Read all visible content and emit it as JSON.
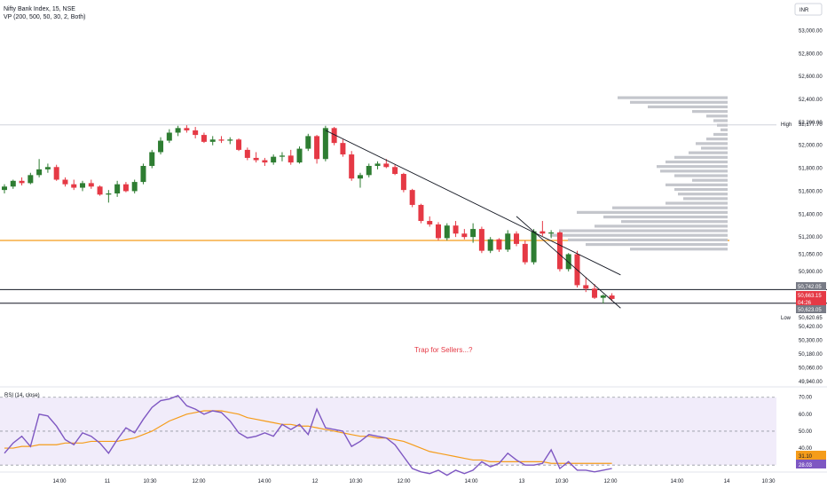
{
  "header": {
    "symbol_line": "Nifty Bank Index, 15, NSE",
    "indicator_line": "VP (200, 500, 50, 30, 2, Both)",
    "currency": "INR"
  },
  "price_axis": {
    "labels": [
      "53,000.00",
      "52,800.00",
      "52,600.00",
      "52,400.00",
      "52,200.00",
      "52,000.00",
      "51,800.00",
      "51,600.00",
      "51,400.00",
      "51,200.00",
      "51,050.00",
      "50,900.00",
      "50,420.00",
      "50,300.00",
      "50,180.00",
      "50,060.00",
      "49,940.00"
    ],
    "high_label": "High",
    "high_value": "52,177.70",
    "low_label": "Low",
    "low_value": "50,620.65",
    "level_top": "50,742.05",
    "last_price": "50,663.15",
    "countdown": "04:26",
    "level_bottom": "50,623.05"
  },
  "rsi": {
    "title": "RSI (14, close)",
    "axis_labels": [
      "70.00",
      "60.00",
      "50.00",
      "40.00",
      "30.00"
    ],
    "ma_value": "31.10",
    "rsi_value": "28.03"
  },
  "time_axis": [
    "14:00",
    "11",
    "10:30",
    "12:00",
    "14:00",
    "12",
    "10:30",
    "12:00",
    "14:00",
    "13",
    "10:30",
    "12:00",
    "14:00",
    "14",
    "10:30"
  ],
  "annotation": "Trap for Sellers...?",
  "colors": {
    "up": "#2e7d32",
    "down": "#e53945",
    "orange": "#f59c1a",
    "rsi_line": "#7e57c2",
    "rsi_bg": "#f1ecfa",
    "vp": "#c4c6cc"
  },
  "chart_data": {
    "type": "candlestick",
    "candles": [
      [
        51610,
        51660,
        51580,
        51640
      ],
      [
        51640,
        51700,
        51620,
        51690
      ],
      [
        51690,
        51720,
        51650,
        51670
      ],
      [
        51670,
        51760,
        51660,
        51740
      ],
      [
        51740,
        51880,
        51720,
        51790
      ],
      [
        51790,
        51840,
        51760,
        51810
      ],
      [
        51810,
        51830,
        51690,
        51700
      ],
      [
        51700,
        51720,
        51640,
        51660
      ],
      [
        51660,
        51700,
        51610,
        51630
      ],
      [
        51630,
        51690,
        51600,
        51670
      ],
      [
        51670,
        51700,
        51620,
        51640
      ],
      [
        51640,
        51650,
        51560,
        51570
      ],
      [
        51570,
        51610,
        51500,
        51580
      ],
      [
        51580,
        51690,
        51550,
        51660
      ],
      [
        51660,
        51680,
        51590,
        51600
      ],
      [
        51600,
        51700,
        51580,
        51680
      ],
      [
        51680,
        51840,
        51660,
        51820
      ],
      [
        51820,
        51960,
        51800,
        51940
      ],
      [
        51940,
        52070,
        51920,
        52040
      ],
      [
        52040,
        52140,
        52020,
        52110
      ],
      [
        52110,
        52170,
        52080,
        52150
      ],
      [
        52150,
        52175,
        52110,
        52130
      ],
      [
        52130,
        52160,
        52060,
        52090
      ],
      [
        52090,
        52110,
        52020,
        52030
      ],
      [
        52030,
        52080,
        52000,
        52050
      ],
      [
        52050,
        52080,
        52020,
        52040
      ],
      [
        52040,
        52070,
        52010,
        52050
      ],
      [
        52050,
        52060,
        51950,
        51960
      ],
      [
        51960,
        51980,
        51870,
        51890
      ],
      [
        51890,
        51940,
        51850,
        51870
      ],
      [
        51870,
        51890,
        51820,
        51850
      ],
      [
        51850,
        51920,
        51830,
        51900
      ],
      [
        51900,
        51940,
        51860,
        51910
      ],
      [
        51910,
        51960,
        51830,
        51850
      ],
      [
        51850,
        51990,
        51840,
        51970
      ],
      [
        51970,
        52100,
        51950,
        52080
      ],
      [
        52080,
        52090,
        51840,
        51880
      ],
      [
        51880,
        52170,
        51860,
        52150
      ],
      [
        52150,
        52160,
        52000,
        52020
      ],
      [
        52020,
        52050,
        51900,
        51920
      ],
      [
        51920,
        51950,
        51690,
        51710
      ],
      [
        51710,
        51760,
        51630,
        51740
      ],
      [
        51740,
        51840,
        51720,
        51820
      ],
      [
        51820,
        51860,
        51790,
        51840
      ],
      [
        51840,
        51880,
        51800,
        51810
      ],
      [
        51810,
        51830,
        51740,
        51750
      ],
      [
        51750,
        51760,
        51590,
        51610
      ],
      [
        51610,
        51620,
        51460,
        51480
      ],
      [
        51480,
        51490,
        51320,
        51340
      ],
      [
        51340,
        51380,
        51290,
        51310
      ],
      [
        51310,
        51330,
        51170,
        51190
      ],
      [
        51190,
        51320,
        51170,
        51300
      ],
      [
        51300,
        51340,
        51200,
        51230
      ],
      [
        51230,
        51270,
        51180,
        51200
      ],
      [
        51200,
        51320,
        51150,
        51270
      ],
      [
        51270,
        51290,
        51060,
        51080
      ],
      [
        51080,
        51200,
        51060,
        51180
      ],
      [
        51180,
        51190,
        51070,
        51090
      ],
      [
        51090,
        51260,
        51070,
        51230
      ],
      [
        51230,
        51250,
        51120,
        51140
      ],
      [
        51140,
        51170,
        50960,
        50980
      ],
      [
        50980,
        51270,
        50960,
        51250
      ],
      [
        51250,
        51340,
        51210,
        51230
      ],
      [
        51230,
        51260,
        51190,
        51240
      ],
      [
        51240,
        51250,
        50900,
        50920
      ],
      [
        50920,
        51060,
        50900,
        51050
      ],
      [
        51050,
        51080,
        50760,
        50780
      ],
      [
        50780,
        50850,
        50720,
        50750
      ],
      [
        50750,
        50790,
        50660,
        50670
      ],
      [
        50670,
        50700,
        50620,
        50690
      ],
      [
        50690,
        50710,
        50640,
        50660
      ]
    ],
    "rsi_values": [
      37,
      43,
      47,
      41,
      60,
      59,
      53,
      45,
      42,
      49,
      47,
      43,
      37,
      45,
      52,
      49,
      57,
      64,
      68,
      69,
      71,
      65,
      63,
      60,
      62,
      61,
      56,
      49,
      46,
      47,
      49,
      47,
      54,
      51,
      54,
      48,
      63,
      52,
      51,
      50,
      41,
      44,
      48,
      47,
      46,
      42,
      35,
      28,
      26,
      25,
      27,
      24,
      27,
      25,
      27,
      32,
      29,
      31,
      37,
      33,
      30,
      30,
      31,
      39,
      28,
      32,
      27,
      27,
      26,
      27,
      28
    ],
    "rsi_ma_values": [
      40,
      40,
      41,
      41,
      42,
      42,
      42,
      43,
      43,
      43,
      44,
      44,
      44,
      44,
      45,
      46,
      48,
      50,
      53,
      56,
      58,
      60,
      61,
      62,
      62,
      62,
      61,
      60,
      58,
      57,
      56,
      55,
      54,
      54,
      53,
      53,
      52,
      51,
      50,
      49,
      48,
      47,
      47,
      46,
      46,
      45,
      44,
      42,
      40,
      38,
      37,
      36,
      35,
      34,
      33,
      33,
      32,
      32,
      32,
      32,
      32,
      32,
      32,
      31,
      31,
      31,
      31,
      31,
      31,
      31,
      31
    ],
    "y_range": [
      49940,
      53050
    ],
    "rsi_range": [
      28,
      73
    ],
    "horizontal_levels": [
      50742.05,
      50623.05,
      51170
    ],
    "trendlines": [
      [
        [
          37,
          52130
        ],
        [
          71,
          50870
        ]
      ],
      [
        [
          59,
          51380
        ],
        [
          71,
          50580
        ]
      ]
    ],
    "volume_profile": [
      [
        52400,
        0.62
      ],
      [
        52360,
        0.55
      ],
      [
        52320,
        0.45
      ],
      [
        52280,
        0.2
      ],
      [
        52240,
        0.12
      ],
      [
        52200,
        0.08
      ],
      [
        52160,
        0.06
      ],
      [
        52120,
        0.04
      ],
      [
        52080,
        0.08
      ],
      [
        52040,
        0.12
      ],
      [
        52000,
        0.18
      ],
      [
        51960,
        0.15
      ],
      [
        51920,
        0.22
      ],
      [
        51880,
        0.3
      ],
      [
        51840,
        0.35
      ],
      [
        51800,
        0.4
      ],
      [
        51760,
        0.38
      ],
      [
        51720,
        0.3
      ],
      [
        51680,
        0.2
      ],
      [
        51640,
        0.35
      ],
      [
        51600,
        0.3
      ],
      [
        51560,
        0.28
      ],
      [
        51520,
        0.25
      ],
      [
        51480,
        0.35
      ],
      [
        51440,
        0.65
      ],
      [
        51400,
        0.85
      ],
      [
        51360,
        0.7
      ],
      [
        51320,
        0.6
      ],
      [
        51280,
        0.75
      ],
      [
        51240,
        0.95
      ],
      [
        51200,
        1.0
      ],
      [
        51160,
        0.9
      ],
      [
        51120,
        0.8
      ],
      [
        51080,
        0.55
      ]
    ]
  }
}
